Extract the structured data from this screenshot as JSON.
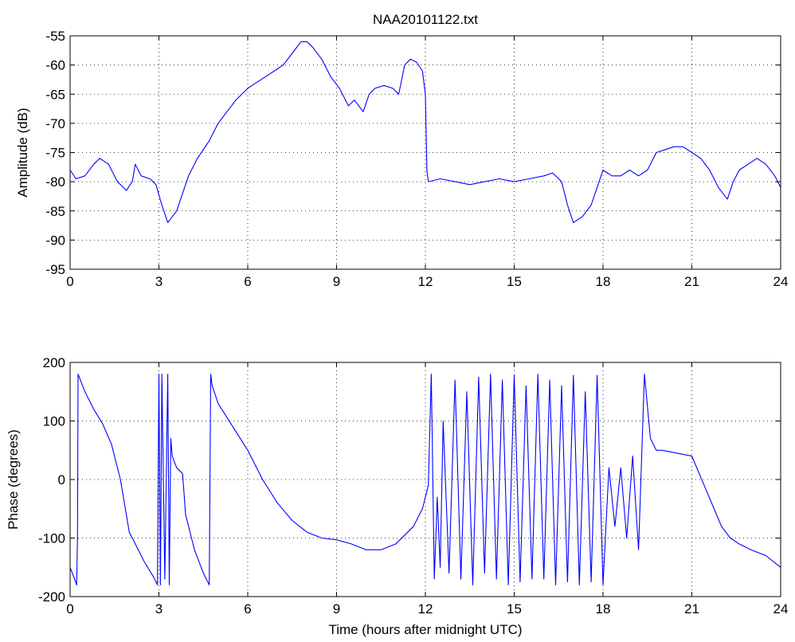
{
  "chart_data": [
    {
      "type": "line",
      "title": "NAA20101122.txt",
      "xlabel": "",
      "ylabel": "Amplitude (dB)",
      "xlim": [
        0,
        24
      ],
      "ylim": [
        -95,
        -55
      ],
      "xticks": [
        "0",
        "3",
        "6",
        "9",
        "12",
        "15",
        "18",
        "21",
        "24"
      ],
      "yticks": [
        "-95",
        "-90",
        "-85",
        "-80",
        "-75",
        "-70",
        "-65",
        "-60",
        "-55"
      ],
      "grid": true,
      "line_color": "#0000ff",
      "series": [
        {
          "x": [
            0,
            0.2,
            0.5,
            0.8,
            1.0,
            1.3,
            1.6,
            1.9,
            2.1,
            2.2,
            2.4,
            2.7,
            2.9,
            3.1,
            3.3,
            3.45,
            3.6,
            3.8,
            4.0,
            4.3,
            4.7,
            5.0,
            5.3,
            5.6,
            6.0,
            6.3,
            6.6,
            6.9,
            7.2,
            7.5,
            7.8,
            8.0,
            8.2,
            8.5,
            8.8,
            9.1,
            9.4,
            9.6,
            9.9,
            10.1,
            10.3,
            10.6,
            10.9,
            11.1,
            11.3,
            11.5,
            11.7,
            11.9,
            12.0,
            12.05,
            12.1,
            12.5,
            13.0,
            13.5,
            14.0,
            14.5,
            15.0,
            15.5,
            16.0,
            16.3,
            16.6,
            16.8,
            17.0,
            17.3,
            17.6,
            17.8,
            18.0,
            18.3,
            18.6,
            18.9,
            19.2,
            19.5,
            19.8,
            20.1,
            20.4,
            20.7,
            21.0,
            21.3,
            21.6,
            21.9,
            22.2,
            22.4,
            22.6,
            22.9,
            23.2,
            23.5,
            23.8,
            24.0
          ],
          "y": [
            -78,
            -79.5,
            -79,
            -77,
            -76,
            -77,
            -80,
            -81.5,
            -80,
            -77,
            -79,
            -79.5,
            -80.5,
            -84,
            -87,
            -86,
            -85,
            -82,
            -79,
            -76,
            -73,
            -70,
            -68,
            -66,
            -64,
            -63,
            -62,
            -61,
            -60,
            -58,
            -56,
            -56,
            -57,
            -59,
            -62,
            -64,
            -67,
            -66,
            -68,
            -65,
            -64,
            -63.5,
            -64,
            -65,
            -60,
            -59,
            -59.5,
            -61,
            -65,
            -78,
            -80,
            -79.5,
            -80,
            -80.5,
            -80,
            -79.5,
            -80,
            -79.5,
            -79,
            -78.5,
            -80,
            -84,
            -87,
            -86,
            -84,
            -81,
            -78,
            -79,
            -79,
            -78,
            -79,
            -78,
            -75,
            -74.5,
            -74,
            -74,
            -75,
            -76,
            -78,
            -81,
            -83,
            -80,
            -78,
            -77,
            -76,
            -77,
            -79,
            -81
          ]
        }
      ]
    },
    {
      "type": "line",
      "title": "",
      "xlabel": "Time (hours after midnight UTC)",
      "ylabel": "Phase (degrees)",
      "xlim": [
        0,
        24
      ],
      "ylim": [
        -200,
        200
      ],
      "xticks": [
        "0",
        "3",
        "6",
        "9",
        "12",
        "15",
        "18",
        "21",
        "24"
      ],
      "yticks": [
        "-200",
        "-100",
        "0",
        "100",
        "200"
      ],
      "grid": true,
      "line_color": "#0000ff",
      "series": [
        {
          "x": [
            0,
            0.15,
            0.22,
            0.25,
            0.27,
            0.5,
            0.8,
            1.1,
            1.4,
            1.7,
            2.0,
            2.2,
            2.5,
            2.8,
            2.95,
            3.0,
            3.05,
            3.1,
            3.2,
            3.3,
            3.35,
            3.4,
            3.45,
            3.6,
            3.8,
            3.9,
            4.0,
            4.2,
            4.5,
            4.7,
            4.75,
            4.8,
            5.0,
            5.5,
            6.0,
            6.5,
            7.0,
            7.5,
            8.0,
            8.5,
            9.0,
            9.5,
            10.0,
            10.5,
            11.0,
            11.3,
            11.6,
            11.9,
            12.1,
            12.2,
            12.3,
            12.4,
            12.5,
            12.6,
            12.8,
            13.0,
            13.2,
            13.4,
            13.6,
            13.8,
            14.0,
            14.2,
            14.4,
            14.6,
            14.8,
            15.0,
            15.2,
            15.4,
            15.6,
            15.8,
            16.0,
            16.2,
            16.4,
            16.6,
            16.8,
            17.0,
            17.2,
            17.4,
            17.6,
            17.8,
            18.0,
            18.2,
            18.4,
            18.6,
            18.8,
            19.0,
            19.2,
            19.4,
            19.6,
            19.8,
            20.0,
            20.5,
            21.0,
            21.5,
            22.0,
            22.3,
            22.6,
            23.0,
            23.5,
            24.0
          ],
          "y": [
            -150,
            -170,
            -180,
            -100,
            180,
            150,
            120,
            95,
            60,
            0,
            -90,
            -110,
            -140,
            -165,
            -180,
            180,
            -180,
            180,
            -170,
            180,
            -180,
            70,
            40,
            20,
            10,
            -60,
            -80,
            -120,
            -160,
            -180,
            180,
            160,
            130,
            90,
            50,
            0,
            -40,
            -70,
            -90,
            -100,
            -103,
            -110,
            -120,
            -120,
            -110,
            -95,
            -80,
            -50,
            -10,
            180,
            -170,
            -30,
            -150,
            100,
            -160,
            170,
            -170,
            150,
            -180,
            175,
            -160,
            180,
            -170,
            170,
            -180,
            178,
            -175,
            160,
            -170,
            180,
            -170,
            170,
            -180,
            160,
            -175,
            178,
            -180,
            150,
            -175,
            178,
            -180,
            20,
            -80,
            20,
            -100,
            40,
            -120,
            180,
            70,
            50,
            50,
            45,
            40,
            -20,
            -80,
            -100,
            -110,
            -120,
            -130,
            -150
          ]
        }
      ]
    }
  ]
}
